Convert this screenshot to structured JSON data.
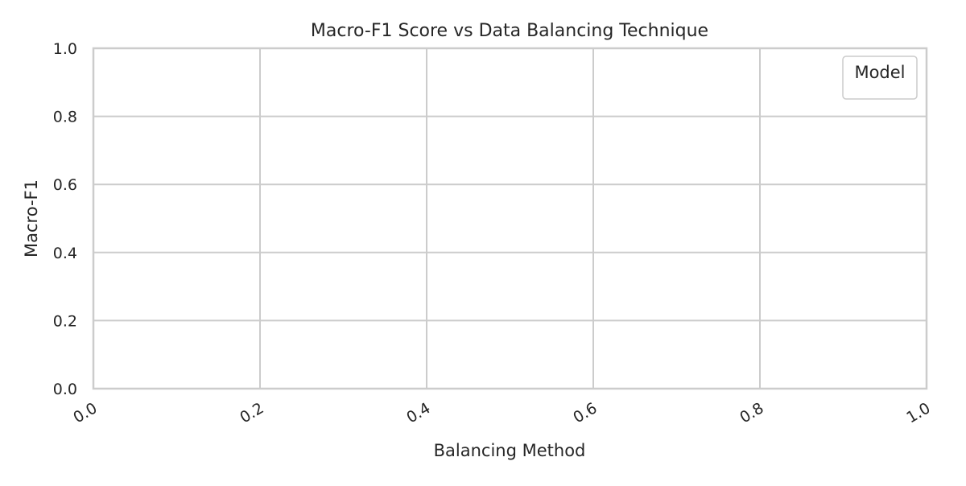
{
  "chart_data": {
    "type": "line",
    "title": "Macro-F1 Score vs Data Balancing Technique",
    "xlabel": "Balancing Method",
    "ylabel": "Macro-F1",
    "xlim": [
      0.0,
      1.0
    ],
    "ylim": [
      0.0,
      1.0
    ],
    "x_ticks": [
      "0.0",
      "0.2",
      "0.4",
      "0.6",
      "0.8",
      "1.0"
    ],
    "y_ticks": [
      "0.0",
      "0.2",
      "0.4",
      "0.6",
      "0.8",
      "1.0"
    ],
    "x_tick_rotation": 30,
    "grid": true,
    "legend": {
      "title": "Model",
      "position": "top-right",
      "entries": []
    },
    "series": [],
    "colors": {
      "grid": "#cccccc",
      "spine": "#cccccc",
      "text": "#262626",
      "background": "#ffffff"
    }
  }
}
